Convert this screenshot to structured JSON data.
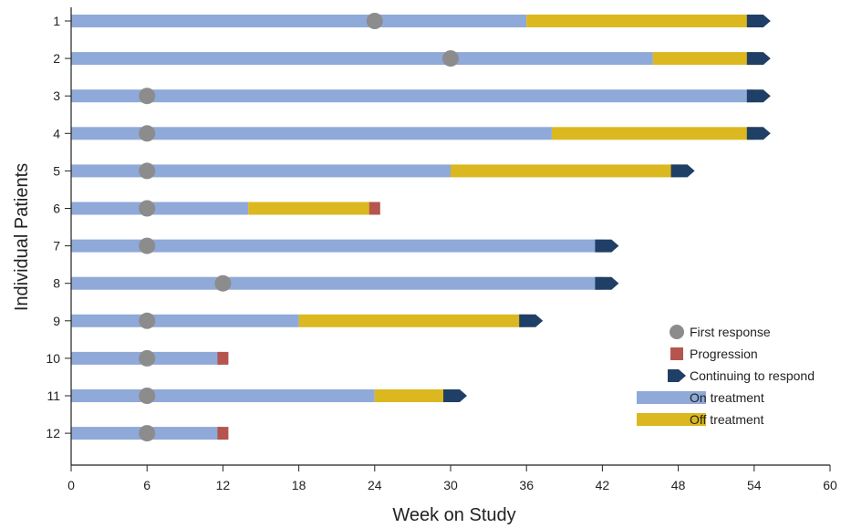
{
  "chart_data": {
    "type": "swimmer",
    "xlabel": "Week on Study",
    "ylabel": "Individual Patients",
    "xlim": [
      0,
      60
    ],
    "xticks": [
      0,
      6,
      12,
      18,
      24,
      30,
      36,
      42,
      48,
      54,
      60
    ],
    "grid": false,
    "legend_position": "right",
    "colors": {
      "on_treatment": "#8fa9d8",
      "off_treatment": "#dbb81f",
      "first_response": "#8c8c8c",
      "progression": "#b5554e",
      "continuing": "#1f3f66"
    },
    "legend": [
      {
        "key": "first_response",
        "label": "First response"
      },
      {
        "key": "progression",
        "label": "Progression"
      },
      {
        "key": "continuing",
        "label": "Continuing to respond"
      },
      {
        "key": "on_treatment",
        "label": "On treatment"
      },
      {
        "key": "off_treatment",
        "label": "Off treatment"
      }
    ],
    "patients": [
      {
        "label": "1",
        "on_treatment_end": 36,
        "off_treatment_end": 54,
        "first_response": 24,
        "outcome": "continuing"
      },
      {
        "label": "2",
        "on_treatment_end": 46,
        "off_treatment_end": 54,
        "first_response": 30,
        "outcome": "continuing"
      },
      {
        "label": "3",
        "on_treatment_end": 54,
        "off_treatment_end": null,
        "first_response": 6,
        "outcome": "continuing"
      },
      {
        "label": "4",
        "on_treatment_end": 38,
        "off_treatment_end": 54,
        "first_response": 6,
        "outcome": "continuing"
      },
      {
        "label": "5",
        "on_treatment_end": 30,
        "off_treatment_end": 48,
        "first_response": 6,
        "outcome": "continuing"
      },
      {
        "label": "6",
        "on_treatment_end": 14,
        "off_treatment_end": 24,
        "first_response": 6,
        "outcome": "progression"
      },
      {
        "label": "7",
        "on_treatment_end": 42,
        "off_treatment_end": null,
        "first_response": 6,
        "outcome": "continuing"
      },
      {
        "label": "8",
        "on_treatment_end": 42,
        "off_treatment_end": null,
        "first_response": 12,
        "outcome": "continuing"
      },
      {
        "label": "9",
        "on_treatment_end": 18,
        "off_treatment_end": 36,
        "first_response": 6,
        "outcome": "continuing"
      },
      {
        "label": "10",
        "on_treatment_end": 12,
        "off_treatment_end": null,
        "first_response": 6,
        "outcome": "progression"
      },
      {
        "label": "11",
        "on_treatment_end": 24,
        "off_treatment_end": 30,
        "first_response": 6,
        "outcome": "continuing"
      },
      {
        "label": "12",
        "on_treatment_end": 12,
        "off_treatment_end": null,
        "first_response": 6,
        "outcome": "progression"
      }
    ]
  }
}
